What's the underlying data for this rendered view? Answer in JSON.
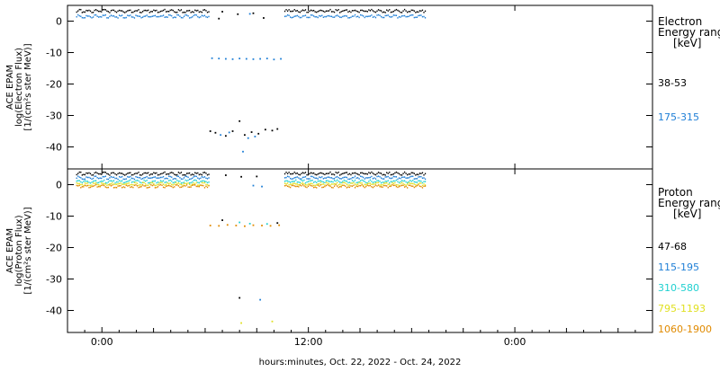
{
  "xaxis": {
    "title": "hours:minutes, Oct. 22, 2022 - Oct. 24, 2022",
    "ticks": [
      {
        "t": 0,
        "label": "0:00"
      },
      {
        "t": 12,
        "label": "12:00"
      },
      {
        "t": 24,
        "label": "0:00"
      }
    ],
    "range": [
      -2,
      32
    ]
  },
  "chart_data": [
    {
      "type": "scatter",
      "ylabel": [
        "ACE EPAM",
        "log(Electron Flux)",
        "[1/(cm²s ster MeV)]"
      ],
      "legend_title": [
        "Electron",
        "Energy range",
        "[keV]"
      ],
      "xlim": [
        -2,
        32
      ],
      "ylim": [
        -47,
        5
      ],
      "yticks": [
        0,
        -10,
        -20,
        -30,
        -40
      ],
      "gap": [
        6.2,
        10.6
      ],
      "series": [
        {
          "name": "38-53",
          "color": "#000000",
          "level": 3.2,
          "gap_points": [
            [
              6.3,
              -35
            ],
            [
              6.6,
              -35.5
            ],
            [
              7.2,
              -36.5
            ],
            [
              7.6,
              -35
            ],
            [
              8.0,
              -31.8
            ],
            [
              8.3,
              -36.2
            ],
            [
              8.7,
              -35.3
            ],
            [
              9.1,
              -35.8
            ],
            [
              9.5,
              -34.5
            ],
            [
              9.9,
              -34.8
            ],
            [
              10.2,
              -34.3
            ],
            [
              7.0,
              3
            ],
            [
              7.9,
              2.2
            ],
            [
              8.8,
              2.5
            ],
            [
              6.8,
              0.8
            ],
            [
              9.4,
              1
            ]
          ]
        },
        {
          "name": "175-315",
          "color": "#1f7fd6",
          "level": 1.5,
          "gap_points": [
            [
              6.4,
              -11.8
            ],
            [
              6.8,
              -11.9
            ],
            [
              7.2,
              -12
            ],
            [
              7.6,
              -12.1
            ],
            [
              8.0,
              -11.9
            ],
            [
              8.4,
              -12
            ],
            [
              8.8,
              -12.1
            ],
            [
              9.2,
              -12
            ],
            [
              9.6,
              -11.9
            ],
            [
              10.0,
              -12.2
            ],
            [
              10.4,
              -12
            ],
            [
              6.9,
              -36.2
            ],
            [
              7.4,
              -35.4
            ],
            [
              8.5,
              -37.2
            ],
            [
              8.9,
              -36.7
            ],
            [
              8.2,
              -41.5
            ],
            [
              8.6,
              2.3
            ]
          ]
        }
      ]
    },
    {
      "type": "scatter",
      "ylabel": [
        "ACE EPAM",
        "log(Proton Flux)",
        "[1/(cm²s ster MeV)]"
      ],
      "legend_title": [
        "Proton",
        "Energy range",
        "[keV]"
      ],
      "xlim": [
        -2,
        32
      ],
      "ylim": [
        -47,
        5
      ],
      "yticks": [
        0,
        -10,
        -20,
        -30,
        -40
      ],
      "gap": [
        6.2,
        10.6
      ],
      "series": [
        {
          "name": "47-68",
          "color": "#000000",
          "level": 3.5,
          "gap_points": [
            [
              7.0,
              -11.3
            ],
            [
              10.2,
              -12.2
            ],
            [
              8.0,
              -36
            ],
            [
              7.2,
              3
            ],
            [
              8.1,
              2.5
            ],
            [
              9.0,
              2.6
            ]
          ]
        },
        {
          "name": "115-195",
          "color": "#1f7fd6",
          "level": 2.2,
          "gap_points": [
            [
              9.2,
              -36.6
            ],
            [
              8.8,
              -0.3
            ],
            [
              9.3,
              -0.6
            ]
          ]
        },
        {
          "name": "310-580",
          "color": "#20d0d0",
          "level": 1.0,
          "gap_points": [
            [
              8.0,
              -12
            ],
            [
              8.6,
              -12.4
            ],
            [
              9.6,
              -12.5
            ]
          ]
        },
        {
          "name": "795-1193",
          "color": "#e0e020",
          "level": 0.2,
          "gap_points": [
            [
              8.1,
              -44
            ],
            [
              9.9,
              -43.5
            ]
          ]
        },
        {
          "name": "1060-1900",
          "color": "#e08a00",
          "level": -0.5,
          "gap_points": [
            [
              6.3,
              -13
            ],
            [
              6.8,
              -13.1
            ],
            [
              7.3,
              -12.8
            ],
            [
              7.8,
              -13
            ],
            [
              8.3,
              -13.2
            ],
            [
              8.8,
              -12.9
            ],
            [
              9.3,
              -13
            ],
            [
              9.8,
              -13.1
            ],
            [
              10.3,
              -12.9
            ]
          ]
        }
      ]
    }
  ]
}
